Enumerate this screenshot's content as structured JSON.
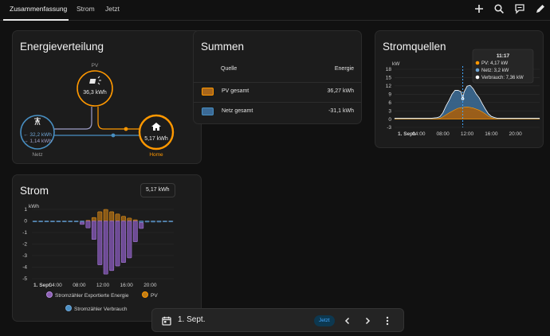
{
  "tabs": [
    {
      "label": "Zusammenfassung"
    },
    {
      "label": "Strom"
    },
    {
      "label": "Jetzt"
    }
  ],
  "toolbar_icons": [
    "plus-icon",
    "search-icon",
    "chat-icon",
    "pencil-icon"
  ],
  "energy_distribution": {
    "title": "Energieverteilung",
    "pv": {
      "label": "PV",
      "value": "36,3 kWh",
      "icon": "solar-panel-icon"
    },
    "grid": {
      "label": "Netz",
      "import": "← 32,2 kWh",
      "export": "→ 1,14 kWh",
      "icon": "power-pole-icon"
    },
    "home": {
      "label": "Home",
      "value": "5,17 kWh",
      "icon": "home-icon"
    },
    "colors": {
      "pv": "#ff9800",
      "grid": "#488fc2",
      "home": "#ff9800"
    }
  },
  "sums": {
    "title": "Summen",
    "col_source": "Quelle",
    "col_energy": "Energie",
    "rows": [
      {
        "name": "PV gesamt",
        "value": "36,27 kWh",
        "color": "#a8661b"
      },
      {
        "name": "Netz gesamt",
        "value": "-31,1 kWh",
        "color": "#3b6a96"
      }
    ]
  },
  "sources": {
    "title": "Stromquellen",
    "tooltip": {
      "time": "11:17",
      "lines": [
        "PV: 4,17 kW",
        "Netz: 3,2 kW",
        "Verbrauch: 7,36 kW"
      ],
      "colors": [
        "#ff9800",
        "#6fa6d6",
        "#ffffff"
      ]
    }
  },
  "strom": {
    "title": "Strom",
    "badge": "5,17 kWh",
    "legend": [
      {
        "label": "Stromzähler Exportierte Energie",
        "color": "#8c5fb2"
      },
      {
        "label": "PV",
        "color": "#c07d16"
      },
      {
        "label": "Stromzähler Verbrauch",
        "color": "#4a8fc4"
      }
    ]
  },
  "bottom_bar": {
    "date": "1. Sept.",
    "now": "Jetzt"
  },
  "chart_data": [
    {
      "type": "area",
      "title": "Stromquellen",
      "ylabel": "kW",
      "ylim": [
        -3,
        18
      ],
      "yticks": [
        18,
        15,
        12,
        9,
        6,
        3,
        0,
        -3
      ],
      "xticks": [
        "1. Sept.",
        "04:00",
        "08:00",
        "12:00",
        "16:00",
        "20:00"
      ],
      "x_hours": [
        0,
        6,
        7,
        7.5,
        8,
        8.5,
        9,
        9.5,
        10,
        10.5,
        11,
        11.28,
        11.5,
        12,
        12.5,
        13,
        13.5,
        14,
        14.5,
        15,
        15.5,
        16,
        16.5,
        17,
        24
      ],
      "series": [
        {
          "name": "PV",
          "color": "#ff9800",
          "values": [
            0,
            0,
            0.1,
            0.3,
            0.8,
            1.5,
            2.2,
            2.8,
            3.4,
            3.9,
            4.1,
            4.17,
            4.3,
            4.4,
            4.2,
            4.0,
            3.6,
            3.2,
            2.6,
            1.9,
            1.1,
            0.5,
            0.2,
            0,
            0
          ]
        },
        {
          "name": "Netz",
          "color": "#6fa6d6",
          "values": [
            0.3,
            0.3,
            0.4,
            0.6,
            1.5,
            3.2,
            4.5,
            6.2,
            7.0,
            6.5,
            5.8,
            3.2,
            5.5,
            7.5,
            8.0,
            7.0,
            5.5,
            4.5,
            3.0,
            1.8,
            0.9,
            0.5,
            0.4,
            0.3,
            0.3
          ]
        },
        {
          "name": "Verbrauch",
          "color": "#ffffff",
          "values": [
            0.3,
            0.3,
            0.5,
            0.9,
            2.3,
            4.7,
            6.7,
            9.0,
            10.4,
            10.4,
            9.9,
            7.36,
            9.8,
            11.9,
            12.2,
            11.0,
            9.1,
            7.7,
            5.6,
            3.7,
            2.0,
            1.0,
            0.6,
            0.3,
            0.3
          ]
        }
      ],
      "marker_hour": 11.28
    },
    {
      "type": "bar",
      "title": "Strom",
      "ylabel": "kWh",
      "ylim": [
        -5,
        1
      ],
      "yticks": [
        1,
        0,
        -1,
        -2,
        -3,
        -4,
        -5
      ],
      "xticks": [
        "1. Sept.",
        "04:00",
        "08:00",
        "12:00",
        "16:00",
        "20:00"
      ],
      "hours": [
        0,
        1,
        2,
        3,
        4,
        5,
        6,
        7,
        8,
        9,
        10,
        11,
        12,
        13,
        14,
        15,
        16,
        17,
        18,
        19,
        20,
        21,
        22,
        23
      ],
      "series": [
        {
          "name": "PV",
          "color": "#c07d16",
          "values": [
            0,
            0,
            0,
            0,
            0,
            0,
            0,
            0,
            0,
            0.05,
            0.3,
            0.8,
            1.0,
            0.8,
            0.6,
            0.4,
            0.25,
            0.1,
            0,
            0,
            0,
            0,
            0,
            0
          ]
        },
        {
          "name": "Stromzähler Exportierte Energie",
          "color": "#8c5fb2",
          "values": [
            0,
            0,
            0,
            0,
            0,
            0,
            0,
            0,
            -0.2,
            -0.6,
            -1.6,
            -3.8,
            -4.6,
            -4.3,
            -3.9,
            -3.6,
            -3.2,
            -1.8,
            -0.5,
            0,
            0,
            0,
            0,
            0
          ]
        },
        {
          "name": "Stromzähler Verbrauch",
          "color": "#4a8fc4",
          "values": [
            -0.05,
            -0.05,
            -0.05,
            -0.05,
            -0.05,
            -0.05,
            -0.05,
            -0.05,
            -0.1,
            0,
            0,
            0,
            0,
            0,
            0,
            0,
            0,
            0,
            -0.15,
            -0.1,
            -0.1,
            -0.1,
            -0.05,
            -0.05
          ]
        }
      ]
    }
  ]
}
